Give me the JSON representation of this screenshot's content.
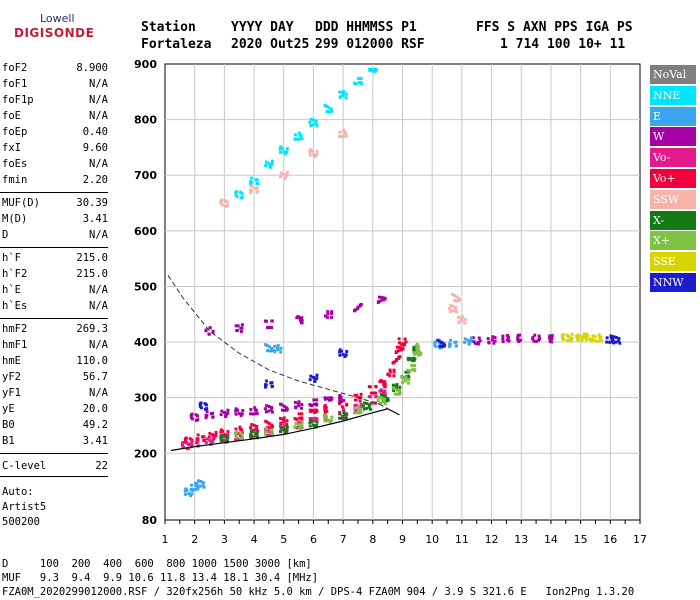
{
  "logo": {
    "line1": "Lowell",
    "line2": "DIGISONDE"
  },
  "header": {
    "labels": [
      "Station",
      "YYYY DAY",
      "DDD HHMMSS P1",
      "FFS S AXN PPS IGA PS"
    ],
    "values": [
      "Fortaleza",
      "2020 Out25",
      "299 012000 RSF",
      "1 714 100 10+ 11"
    ]
  },
  "scaled": [
    {
      "k": "foF2",
      "v": "8.900"
    },
    {
      "k": "foF1",
      "v": "N/A"
    },
    {
      "k": "foF1p",
      "v": "N/A"
    },
    {
      "k": "foE",
      "v": "N/A"
    },
    {
      "k": "foEp",
      "v": "0.40"
    },
    {
      "k": "fxI",
      "v": "9.60"
    },
    {
      "k": "foEs",
      "v": "N/A"
    },
    {
      "k": "fmin",
      "v": "2.20"
    },
    {
      "k": "MUF(D)",
      "v": "30.39"
    },
    {
      "k": "M(D)",
      "v": "3.41"
    },
    {
      "k": "D",
      "v": "N/A"
    },
    {
      "k": "h`F",
      "v": "215.0"
    },
    {
      "k": "h`F2",
      "v": "215.0"
    },
    {
      "k": "h`E",
      "v": "N/A"
    },
    {
      "k": "h`Es",
      "v": "N/A"
    },
    {
      "k": "hmF2",
      "v": "269.3"
    },
    {
      "k": "hmF1",
      "v": "N/A"
    },
    {
      "k": "hmE",
      "v": "110.0"
    },
    {
      "k": "yF2",
      "v": "56.7"
    },
    {
      "k": "yF1",
      "v": "N/A"
    },
    {
      "k": "yE",
      "v": "20.0"
    },
    {
      "k": "B0",
      "v": "49.2"
    },
    {
      "k": "B1",
      "v": "3.41"
    },
    {
      "k": "C-level",
      "v": "22"
    }
  ],
  "autoscaling": {
    "line1": "Auto:",
    "line2": "Artist5",
    "line3": "500200"
  },
  "legend": [
    {
      "name": "NoVal",
      "color": "#7f7f7f"
    },
    {
      "name": "NNE",
      "color": "#00e5ff"
    },
    {
      "name": "E",
      "color": "#3aa6f0"
    },
    {
      "name": "W",
      "color": "#a400a4"
    },
    {
      "name": "Vo-",
      "color": "#e21a8c"
    },
    {
      "name": "Vo+",
      "color": "#f0003c"
    },
    {
      "name": "SSW",
      "color": "#f7b3aa"
    },
    {
      "name": "X-",
      "color": "#137a13"
    },
    {
      "name": "X+",
      "color": "#7dc241"
    },
    {
      "name": "SSE",
      "color": "#d7d400"
    },
    {
      "name": "NNW",
      "color": "#1c1ccf"
    }
  ],
  "footer": {
    "d_row": "D     100  200  400  600  800 1000 1500 3000 [km]",
    "muf_row": "MUF   9.3  9.4  9.9 10.6 11.8 13.4 18.1 30.4 [MHz]",
    "info_row": "FZA0M_2020299012000.RSF / 320fx256h 50 kHz 5.0 km / DPS-4 FZA0M 904 / 3.9 S 321.6 E   Ion2Png 1.3.20"
  },
  "chart_data": {
    "type": "scatter",
    "x": {
      "min": 1,
      "max": 17,
      "ticks": [
        1,
        2,
        3,
        4,
        5,
        6,
        7,
        8,
        9,
        10,
        11,
        12,
        13,
        14,
        15,
        16,
        17
      ]
    },
    "y": {
      "min": 80,
      "max": 900,
      "ticks": [
        80,
        200,
        300,
        400,
        500,
        600,
        700,
        800,
        900
      ]
    },
    "grid": true,
    "series": [
      {
        "name": "Vo+",
        "color": "#f0003c",
        "points": [
          [
            1.8,
            222
          ],
          [
            2.2,
            228
          ],
          [
            2.6,
            232
          ],
          [
            3.0,
            236
          ],
          [
            3.5,
            241
          ],
          [
            4.0,
            246
          ],
          [
            4.5,
            252
          ],
          [
            5.0,
            258
          ],
          [
            5.5,
            265
          ],
          [
            6.0,
            272
          ],
          [
            6.5,
            280
          ],
          [
            7.0,
            289
          ],
          [
            7.5,
            300
          ],
          [
            8.0,
            314
          ],
          [
            8.3,
            325
          ],
          [
            8.6,
            345
          ],
          [
            8.8,
            368
          ],
          [
            8.9,
            385
          ],
          [
            9.0,
            400
          ]
        ]
      },
      {
        "name": "Vo-",
        "color": "#e21a8c",
        "points": [
          [
            1.7,
            214
          ],
          [
            2.0,
            218
          ],
          [
            2.5,
            222
          ],
          [
            3.0,
            226
          ],
          [
            3.5,
            230
          ],
          [
            4.0,
            234
          ],
          [
            4.5,
            238
          ],
          [
            5.0,
            244
          ],
          [
            5.5,
            250
          ],
          [
            6.0,
            257
          ],
          [
            6.5,
            264
          ],
          [
            7.0,
            272
          ],
          [
            7.5,
            282
          ],
          [
            8.0,
            296
          ],
          [
            8.3,
            308
          ]
        ]
      },
      {
        "name": "X-",
        "color": "#137a13",
        "points": [
          [
            3.0,
            226
          ],
          [
            4.0,
            234
          ],
          [
            5.0,
            242
          ],
          [
            6.0,
            253
          ],
          [
            7.0,
            268
          ],
          [
            7.8,
            285
          ],
          [
            8.4,
            300
          ],
          [
            8.8,
            318
          ],
          [
            9.1,
            340
          ],
          [
            9.3,
            365
          ],
          [
            9.5,
            385
          ]
        ]
      },
      {
        "name": "X+",
        "color": "#7dc241",
        "points": [
          [
            3.5,
            232
          ],
          [
            4.5,
            240
          ],
          [
            5.5,
            250
          ],
          [
            6.5,
            262
          ],
          [
            7.5,
            278
          ],
          [
            8.3,
            295
          ],
          [
            8.8,
            312
          ],
          [
            9.1,
            332
          ],
          [
            9.3,
            352
          ],
          [
            9.5,
            375
          ],
          [
            9.6,
            390
          ]
        ]
      },
      {
        "name": "W",
        "color": "#a400a4",
        "points": [
          [
            2.0,
            265
          ],
          [
            2.5,
            270
          ],
          [
            3.0,
            272
          ],
          [
            3.5,
            274
          ],
          [
            4.0,
            276
          ],
          [
            4.5,
            280
          ],
          [
            5.0,
            283
          ],
          [
            5.5,
            287
          ],
          [
            6.0,
            290
          ],
          [
            6.5,
            294
          ],
          [
            7.0,
            298
          ],
          [
            2.5,
            420
          ],
          [
            3.5,
            425
          ],
          [
            4.5,
            432
          ],
          [
            5.5,
            440
          ],
          [
            6.5,
            450
          ],
          [
            7.5,
            462
          ],
          [
            8.3,
            475
          ],
          [
            11.5,
            402
          ],
          [
            12.0,
            404
          ],
          [
            12.5,
            406
          ],
          [
            13.0,
            407
          ],
          [
            13.5,
            407
          ],
          [
            14.0,
            406
          ]
        ]
      },
      {
        "name": "E",
        "color": "#3aa6f0",
        "points": [
          [
            10.2,
            395
          ],
          [
            10.7,
            398
          ],
          [
            11.2,
            402
          ],
          [
            1.8,
            130
          ],
          [
            2.0,
            140
          ],
          [
            2.2,
            145
          ],
          [
            4.5,
            390
          ],
          [
            4.8,
            388
          ]
        ]
      },
      {
        "name": "NNE",
        "color": "#00e5ff",
        "points": [
          [
            3.5,
            665
          ],
          [
            4.0,
            690
          ],
          [
            4.5,
            720
          ],
          [
            5.0,
            745
          ],
          [
            5.5,
            770
          ],
          [
            6.0,
            795
          ],
          [
            6.5,
            820
          ],
          [
            7.0,
            845
          ],
          [
            7.5,
            868
          ],
          [
            8.0,
            885
          ]
        ]
      },
      {
        "name": "SSW",
        "color": "#f7b3aa",
        "points": [
          [
            3.0,
            650
          ],
          [
            4.0,
            675
          ],
          [
            5.0,
            700
          ],
          [
            6.0,
            740
          ],
          [
            7.0,
            775
          ],
          [
            10.7,
            460
          ],
          [
            10.8,
            480
          ],
          [
            11.0,
            440
          ]
        ]
      },
      {
        "name": "NNW",
        "color": "#1c1ccf",
        "points": [
          [
            2.3,
            285
          ],
          [
            4.5,
            325
          ],
          [
            6.0,
            335
          ],
          [
            7.0,
            380
          ],
          [
            16.0,
            405
          ],
          [
            16.2,
            404
          ],
          [
            10.3,
            398
          ]
        ]
      },
      {
        "name": "SSE",
        "color": "#d7d400",
        "points": [
          [
            14.5,
            408
          ],
          [
            14.8,
            409
          ],
          [
            15.0,
            409
          ],
          [
            15.3,
            408
          ],
          [
            15.6,
            407
          ]
        ]
      }
    ]
  }
}
